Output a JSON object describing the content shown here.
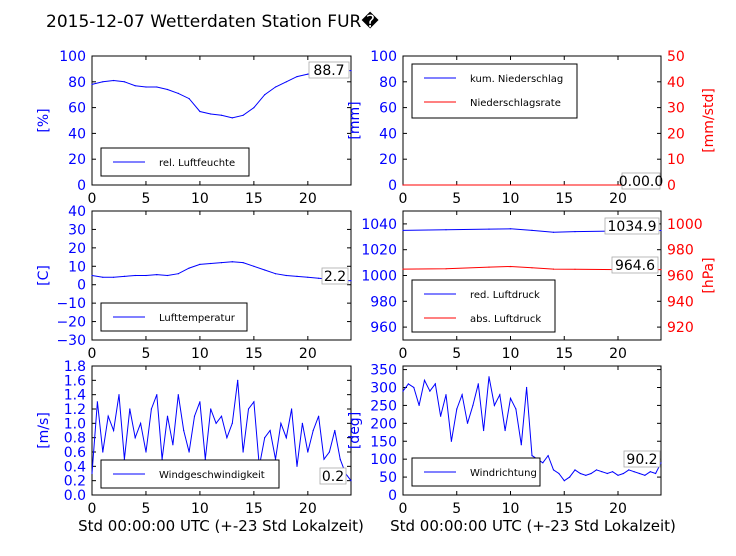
{
  "title": "2015-12-07 Wetterdaten Station FUR�",
  "xlabel": "Std 00:00:00 UTC (+-23 Std Lokalzeit)",
  "colors": {
    "primary": "#0000ff",
    "secondary": "#ff0000",
    "axis": "#000000"
  },
  "chart_data": [
    {
      "type": "line",
      "id": "humidity",
      "ylabel": "[%]",
      "xlim": [
        0,
        24
      ],
      "ylim": [
        0,
        100
      ],
      "x_ticks": [
        "0",
        "5",
        "10",
        "15",
        "20"
      ],
      "y_ticks": [
        "0",
        "20",
        "40",
        "60",
        "80",
        "100"
      ],
      "legend": [
        "rel. Luftfeuchte"
      ],
      "legend_position": "lower-left",
      "value_label": "88.7",
      "series": [
        {
          "name": "rel. Luftfeuchte",
          "color": "#0000ff",
          "x": [
            0,
            1,
            2,
            3,
            4,
            5,
            6,
            7,
            8,
            9,
            10,
            11,
            12,
            13,
            14,
            15,
            16,
            17,
            18,
            19,
            20,
            21,
            22,
            23,
            24
          ],
          "y": [
            78,
            80,
            81,
            80,
            77,
            76,
            76,
            74,
            71,
            67,
            57,
            55,
            54,
            52,
            54,
            60,
            70,
            76,
            80,
            84,
            86,
            87,
            88,
            88.5,
            88.7
          ]
        }
      ]
    },
    {
      "type": "line",
      "id": "precipitation",
      "ylabel": "[mm]",
      "ylabel2": "[mm/std]",
      "xlim": [
        0,
        24
      ],
      "ylim": [
        0,
        100
      ],
      "ylim2": [
        0,
        50
      ],
      "x_ticks": [
        "0",
        "5",
        "10",
        "15",
        "20"
      ],
      "y_ticks": [
        "0",
        "20",
        "40",
        "60",
        "80",
        "100"
      ],
      "y2_ticks": [
        "0",
        "10",
        "20",
        "30",
        "40",
        "50"
      ],
      "legend": [
        "kum. Niederschlag",
        "Niederschlagsrate"
      ],
      "legend_position": "upper-left",
      "value_label": "0.00.0",
      "series": [
        {
          "name": "kum. Niederschlag",
          "color": "#0000ff",
          "x": [
            0,
            24
          ],
          "y": [
            0,
            0
          ]
        },
        {
          "name": "Niederschlagsrate",
          "color": "#ff0000",
          "x": [
            0,
            24
          ],
          "y": [
            0,
            0
          ]
        }
      ]
    },
    {
      "type": "line",
      "id": "temperature",
      "ylabel": "[C]",
      "xlim": [
        0,
        24
      ],
      "ylim": [
        -30,
        40
      ],
      "x_ticks": [
        "0",
        "5",
        "10",
        "15",
        "20"
      ],
      "y_ticks": [
        "−30",
        "−20",
        "−10",
        "0",
        "10",
        "20",
        "30",
        "40"
      ],
      "legend": [
        "Lufttemperatur"
      ],
      "legend_position": "lower-left",
      "value_label": "2.2",
      "series": [
        {
          "name": "Lufttemperatur",
          "color": "#0000ff",
          "x": [
            0,
            1,
            2,
            3,
            4,
            5,
            6,
            7,
            8,
            9,
            10,
            11,
            12,
            13,
            14,
            15,
            16,
            17,
            18,
            19,
            20,
            21,
            22,
            23,
            24
          ],
          "y": [
            5,
            4,
            4,
            4.5,
            5,
            5,
            5.5,
            5,
            6,
            9,
            11,
            11.5,
            12,
            12.5,
            12,
            10,
            8,
            6,
            5,
            4.5,
            4,
            3.5,
            3,
            2.5,
            2.2
          ]
        }
      ]
    },
    {
      "type": "line",
      "id": "pressure",
      "ylabel2": "[hPa]",
      "xlim": [
        0,
        24
      ],
      "ylim": [
        950,
        1050
      ],
      "ylim2": [
        910,
        1010
      ],
      "x_ticks": [
        "0",
        "5",
        "10",
        "15",
        "20"
      ],
      "y_ticks": [
        "960",
        "980",
        "1000",
        "1020",
        "1040"
      ],
      "y2_ticks": [
        "920",
        "940",
        "960",
        "980",
        "1000"
      ],
      "legend": [
        "red. Luftdruck",
        "abs. Luftdruck"
      ],
      "legend_position": "lower-left",
      "value_labels": [
        "1034.9",
        "964.6"
      ],
      "series": [
        {
          "name": "red. Luftdruck",
          "color": "#0000ff",
          "x": [
            0,
            4,
            8,
            10,
            12,
            14,
            16,
            20,
            24
          ],
          "y": [
            1035,
            1035.5,
            1036,
            1036.2,
            1035,
            1033.5,
            1034,
            1034.5,
            1034.9
          ]
        },
        {
          "name": "abs. Luftdruck",
          "color": "#ff0000",
          "axis": "right",
          "x": [
            0,
            4,
            8,
            10,
            12,
            14,
            16,
            20,
            24
          ],
          "y": [
            965,
            965.2,
            966.5,
            967,
            966,
            965,
            964.8,
            964.6,
            964.6
          ]
        }
      ]
    },
    {
      "type": "line",
      "id": "windspeed",
      "ylabel": "[m/s]",
      "xlim": [
        0,
        24
      ],
      "ylim": [
        0,
        1.8
      ],
      "x_ticks": [
        "0",
        "5",
        "10",
        "15",
        "20"
      ],
      "y_ticks": [
        "0.0",
        "0.2",
        "0.4",
        "0.6",
        "0.8",
        "1.0",
        "1.2",
        "1.4",
        "1.6",
        "1.8"
      ],
      "legend": [
        "Windgeschwindigkeit"
      ],
      "legend_position": "lower-left",
      "value_label": "0.2",
      "series": [
        {
          "name": "Windgeschwindigkeit",
          "color": "#0000ff",
          "x": [
            0,
            0.5,
            1,
            1.5,
            2,
            2.5,
            3,
            3.5,
            4,
            4.5,
            5,
            5.5,
            6,
            6.5,
            7,
            7.5,
            8,
            8.5,
            9,
            9.5,
            10,
            10.5,
            11,
            11.5,
            12,
            12.5,
            13,
            13.5,
            14,
            14.5,
            15,
            15.5,
            16,
            16.5,
            17,
            17.5,
            18,
            18.5,
            19,
            19.5,
            20,
            20.5,
            21,
            21.5,
            22,
            22.5,
            23,
            23.5,
            24
          ],
          "y": [
            0.3,
            1.3,
            0.6,
            1.1,
            0.9,
            1.4,
            0.5,
            1.2,
            0.8,
            1.0,
            0.6,
            1.2,
            1.4,
            0.5,
            1.1,
            0.7,
            1.4,
            0.9,
            0.6,
            1.1,
            1.3,
            0.5,
            1.2,
            1.0,
            1.1,
            0.8,
            1.0,
            1.6,
            0.6,
            1.2,
            1.3,
            0.4,
            0.8,
            0.9,
            0.5,
            1.0,
            0.8,
            1.2,
            0.4,
            1.0,
            0.6,
            0.9,
            1.1,
            0.5,
            0.6,
            0.9,
            0.5,
            0.3,
            0.2
          ]
        }
      ]
    },
    {
      "type": "line",
      "id": "winddirection",
      "ylabel": "[deg]",
      "xlim": [
        0,
        24
      ],
      "ylim": [
        0,
        360
      ],
      "x_ticks": [
        "0",
        "5",
        "10",
        "15",
        "20"
      ],
      "y_ticks": [
        "0",
        "50",
        "100",
        "150",
        "200",
        "250",
        "300",
        "350"
      ],
      "legend": [
        "Windrichtung"
      ],
      "legend_position": "lower-left",
      "value_label": "90.2",
      "series": [
        {
          "name": "Windrichtung",
          "color": "#0000ff",
          "x": [
            0,
            0.5,
            1,
            1.5,
            2,
            2.5,
            3,
            3.5,
            4,
            4.5,
            5,
            5.5,
            6,
            6.5,
            7,
            7.5,
            8,
            8.5,
            9,
            9.5,
            10,
            10.5,
            11,
            11.5,
            12,
            12.5,
            13,
            13.5,
            14,
            14.5,
            15,
            15.5,
            16,
            16.5,
            17,
            17.5,
            18,
            18.5,
            19,
            19.5,
            20,
            20.5,
            21,
            21.5,
            22,
            22.5,
            23,
            23.5,
            24
          ],
          "y": [
            290,
            310,
            300,
            250,
            320,
            290,
            310,
            220,
            280,
            150,
            240,
            280,
            200,
            250,
            310,
            180,
            330,
            250,
            280,
            180,
            270,
            240,
            140,
            300,
            110,
            100,
            90,
            110,
            70,
            60,
            40,
            50,
            70,
            60,
            55,
            60,
            70,
            65,
            60,
            65,
            55,
            60,
            70,
            65,
            60,
            55,
            65,
            60,
            90
          ]
        }
      ]
    }
  ]
}
